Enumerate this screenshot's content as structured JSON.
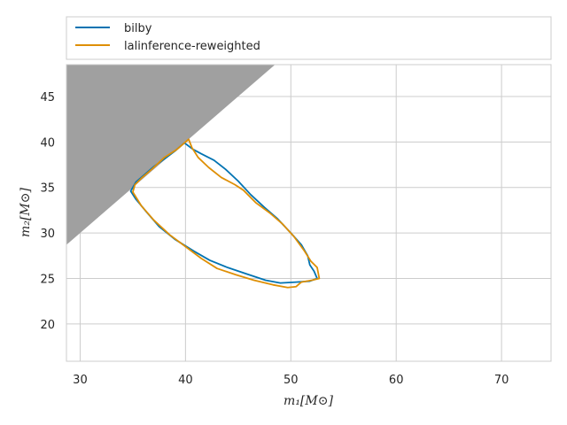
{
  "chart_data": {
    "type": "line",
    "title": "",
    "xlabel": "m₁[M⊙]",
    "ylabel": "m₂[M⊙]",
    "xlim": [
      28.7,
      74.7
    ],
    "ylim": [
      15.9,
      48.5
    ],
    "xticks": [
      30,
      40,
      50,
      60,
      70
    ],
    "yticks": [
      20,
      25,
      30,
      35,
      40,
      45
    ],
    "grid": true,
    "legend_placement": "top, above plot",
    "excluded_region": {
      "description": "shaded region where m2 > m1",
      "color": "#a0a0a0",
      "polygon": [
        [
          28.7,
          28.7
        ],
        [
          48.5,
          48.5
        ],
        [
          28.7,
          48.5
        ]
      ]
    },
    "series": [
      {
        "name": "bilby",
        "color": "#0173b2",
        "points": [
          [
            39.9,
            39.9
          ],
          [
            40.7,
            39.2
          ],
          [
            41.5,
            38.7
          ],
          [
            42.7,
            38.0
          ],
          [
            43.8,
            37.0
          ],
          [
            45.0,
            35.7
          ],
          [
            46.2,
            34.2
          ],
          [
            47.5,
            32.8
          ],
          [
            48.7,
            31.6
          ],
          [
            50.0,
            30.0
          ],
          [
            51.0,
            28.7
          ],
          [
            51.6,
            27.5
          ],
          [
            51.8,
            26.5
          ],
          [
            52.2,
            25.8
          ],
          [
            52.5,
            25.0
          ],
          [
            51.8,
            24.7
          ],
          [
            50.5,
            24.6
          ],
          [
            49.0,
            24.5
          ],
          [
            47.6,
            24.8
          ],
          [
            45.8,
            25.5
          ],
          [
            44.0,
            26.2
          ],
          [
            42.3,
            27.0
          ],
          [
            40.8,
            28.0
          ],
          [
            39.0,
            29.3
          ],
          [
            37.5,
            30.7
          ],
          [
            36.3,
            32.3
          ],
          [
            35.3,
            33.7
          ],
          [
            34.8,
            34.6
          ],
          [
            35.3,
            35.6
          ],
          [
            36.0,
            36.3
          ],
          [
            37.0,
            37.3
          ],
          [
            38.2,
            38.3
          ],
          [
            39.1,
            39.1
          ],
          [
            39.9,
            39.9
          ]
        ]
      },
      {
        "name": "lalinference-reweighted",
        "color": "#de8f05",
        "points": [
          [
            40.3,
            40.3
          ],
          [
            40.6,
            39.4
          ],
          [
            41.2,
            38.3
          ],
          [
            42.2,
            37.2
          ],
          [
            43.4,
            36.1
          ],
          [
            44.7,
            35.3
          ],
          [
            45.5,
            34.7
          ],
          [
            46.7,
            33.3
          ],
          [
            48.0,
            32.2
          ],
          [
            49.2,
            31.0
          ],
          [
            50.3,
            29.6
          ],
          [
            51.3,
            28.0
          ],
          [
            51.9,
            26.9
          ],
          [
            52.5,
            26.2
          ],
          [
            52.7,
            25.0
          ],
          [
            52.0,
            24.8
          ],
          [
            51.0,
            24.6
          ],
          [
            50.5,
            24.1
          ],
          [
            49.7,
            24.0
          ],
          [
            48.3,
            24.3
          ],
          [
            46.5,
            24.8
          ],
          [
            44.8,
            25.4
          ],
          [
            43.0,
            26.1
          ],
          [
            41.5,
            27.2
          ],
          [
            40.0,
            28.5
          ],
          [
            38.5,
            29.8
          ],
          [
            37.0,
            31.4
          ],
          [
            35.8,
            33.0
          ],
          [
            35.0,
            34.5
          ],
          [
            35.2,
            35.3
          ],
          [
            35.8,
            36.0
          ],
          [
            36.8,
            37.0
          ],
          [
            38.0,
            38.3
          ],
          [
            39.2,
            39.2
          ],
          [
            40.3,
            40.3
          ]
        ]
      }
    ]
  }
}
